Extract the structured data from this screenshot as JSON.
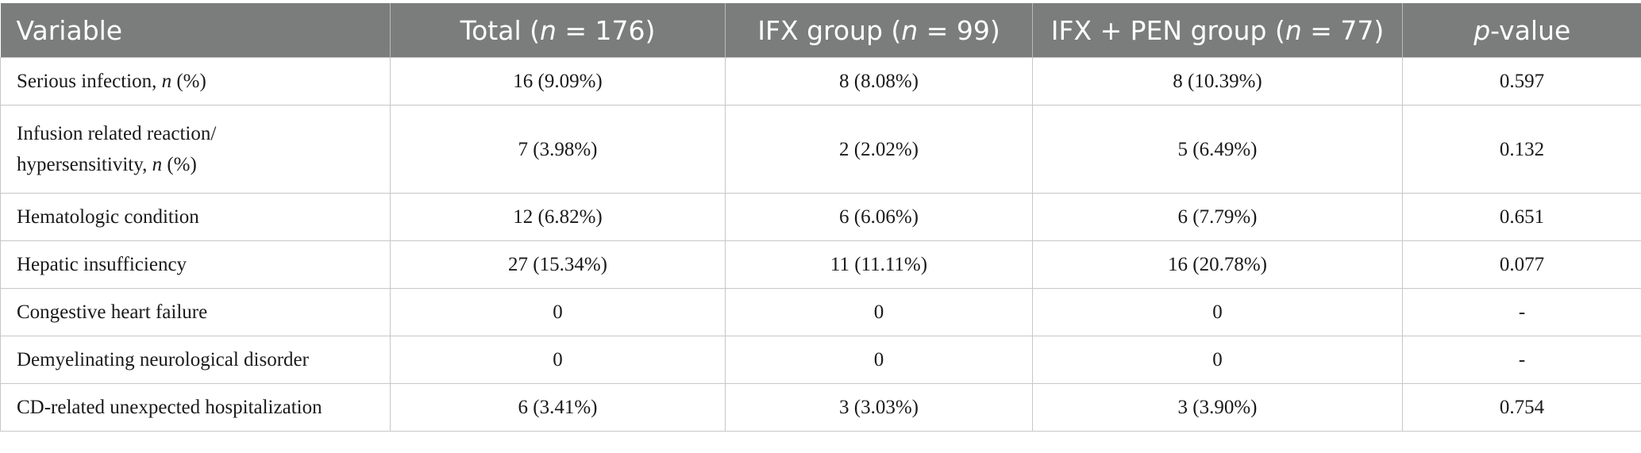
{
  "table": {
    "header": {
      "variable": "Variable",
      "total_prefix": "Total (",
      "total_n": "n",
      "total_suffix": " = 176)",
      "ifx_prefix": "IFX group (",
      "ifx_n": "n",
      "ifx_suffix": " = 99)",
      "ifxpen_prefix": "IFX + PEN group (",
      "ifxpen_n": "n",
      "ifxpen_suffix": " = 77)",
      "p_italic": "p",
      "p_suffix": "-value"
    },
    "rows": [
      {
        "label_line1": "Serious infection, ",
        "label_n": "n",
        "label_suffix": " (%)",
        "total": "16 (9.09%)",
        "ifx": "8 (8.08%)",
        "ifxpen": "8 (10.39%)",
        "p": "0.597"
      },
      {
        "label_line1": "Infusion related reaction/",
        "label_line2": "hypersensitivity, ",
        "label_n": "n",
        "label_suffix": " (%)",
        "total": "7 (3.98%)",
        "ifx": "2 (2.02%)",
        "ifxpen": "5 (6.49%)",
        "p": "0.132"
      },
      {
        "label": "Hematologic condition",
        "total": "12 (6.82%)",
        "ifx": "6 (6.06%)",
        "ifxpen": "6 (7.79%)",
        "p": "0.651"
      },
      {
        "label": "Hepatic insufficiency",
        "total": "27 (15.34%)",
        "ifx": "11 (11.11%)",
        "ifxpen": "16 (20.78%)",
        "p": "0.077"
      },
      {
        "label": "Congestive heart failure",
        "total": "0",
        "ifx": "0",
        "ifxpen": "0",
        "p": "-"
      },
      {
        "label": "Demyelinating neurological disorder",
        "total": "0",
        "ifx": "0",
        "ifxpen": "0",
        "p": "-"
      },
      {
        "label": "CD-related unexpected hospitalization",
        "total": "6 (3.41%)",
        "ifx": "3 (3.03%)",
        "ifxpen": "3 (3.90%)",
        "p": "0.754"
      }
    ]
  }
}
